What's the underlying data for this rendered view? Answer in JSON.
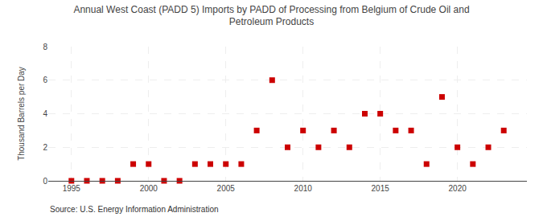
{
  "chart_data": {
    "type": "scatter",
    "title": "Annual West Coast (PADD 5) Imports by PADD of Processing from Belgium of Crude Oil and\nPetroleum Products",
    "ylabel": "Thousand Barrels per Day",
    "annotations": [
      "Source: U.S. Energy Information Administration"
    ],
    "color": "#cc0000",
    "marker": "square",
    "grid": true,
    "x": [
      1995,
      1996,
      1997,
      1998,
      1999,
      2000,
      2001,
      2002,
      2003,
      2004,
      2005,
      2006,
      2007,
      2008,
      2009,
      2010,
      2011,
      2012,
      2013,
      2014,
      2015,
      2016,
      2017,
      2018,
      2019,
      2020,
      2021,
      2022,
      2023
    ],
    "values": [
      0,
      0,
      0,
      0,
      1,
      1,
      0,
      0,
      1,
      1,
      1,
      1,
      3,
      6,
      2,
      3,
      2,
      3,
      2,
      4,
      4,
      3,
      3,
      1,
      5,
      2,
      1,
      2,
      3
    ],
    "xlim": [
      1993.5,
      2024.5
    ],
    "xticks": [
      1995,
      2000,
      2005,
      2010,
      2015,
      2020
    ],
    "ylim": [
      0,
      8
    ],
    "yticks": [
      0,
      2,
      4,
      6,
      8
    ]
  }
}
